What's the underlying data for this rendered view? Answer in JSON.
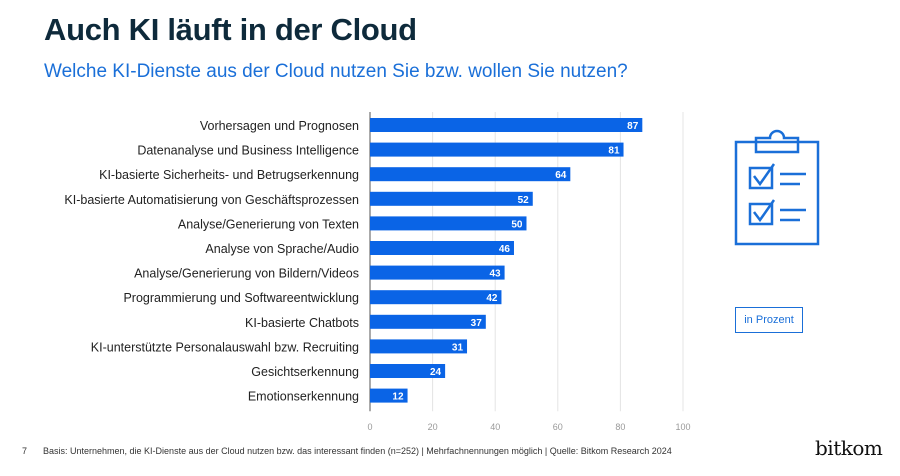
{
  "header": {
    "title": "Auch KI läuft in der Cloud",
    "subtitle": "Welche KI-Dienste aus der Cloud nutzen Sie bzw. wollen Sie nutzen?"
  },
  "legend_box": "in Prozent",
  "footer": {
    "page": "7",
    "note": "Basis: Unternehmen, die KI-Dienste aus der Cloud nutzen bzw. das interessant finden (n=252) | Mehrfachnennungen möglich | Quelle: Bitkom Research 2024",
    "logo": "bitkom"
  },
  "icon": "clipboard-checklist-icon",
  "chart_data": {
    "type": "bar",
    "orientation": "horizontal",
    "categories": [
      "Vorhersagen und Prognosen",
      "Datenanalyse und Business Intelligence",
      "KI-basierte Sicherheits- und Betrugserkennung",
      "KI-basierte Automatisierung von Geschäftsprozessen",
      "Analyse/Generierung von Texten",
      "Analyse von Sprache/Audio",
      "Analyse/Generierung von Bildern/Videos",
      "Programmierung und Softwareentwicklung",
      "KI-basierte Chatbots",
      "KI-unterstützte Personalauswahl bzw. Recruiting",
      "Gesichtserkennung",
      "Emotionserkennung"
    ],
    "values": [
      87,
      81,
      64,
      52,
      50,
      46,
      43,
      42,
      37,
      31,
      24,
      12
    ],
    "xlim": [
      0,
      100
    ],
    "xticks": [
      0,
      20,
      40,
      60,
      80,
      100
    ],
    "grid": true,
    "bar_color": "#0a64e6",
    "unit": "in Prozent"
  }
}
